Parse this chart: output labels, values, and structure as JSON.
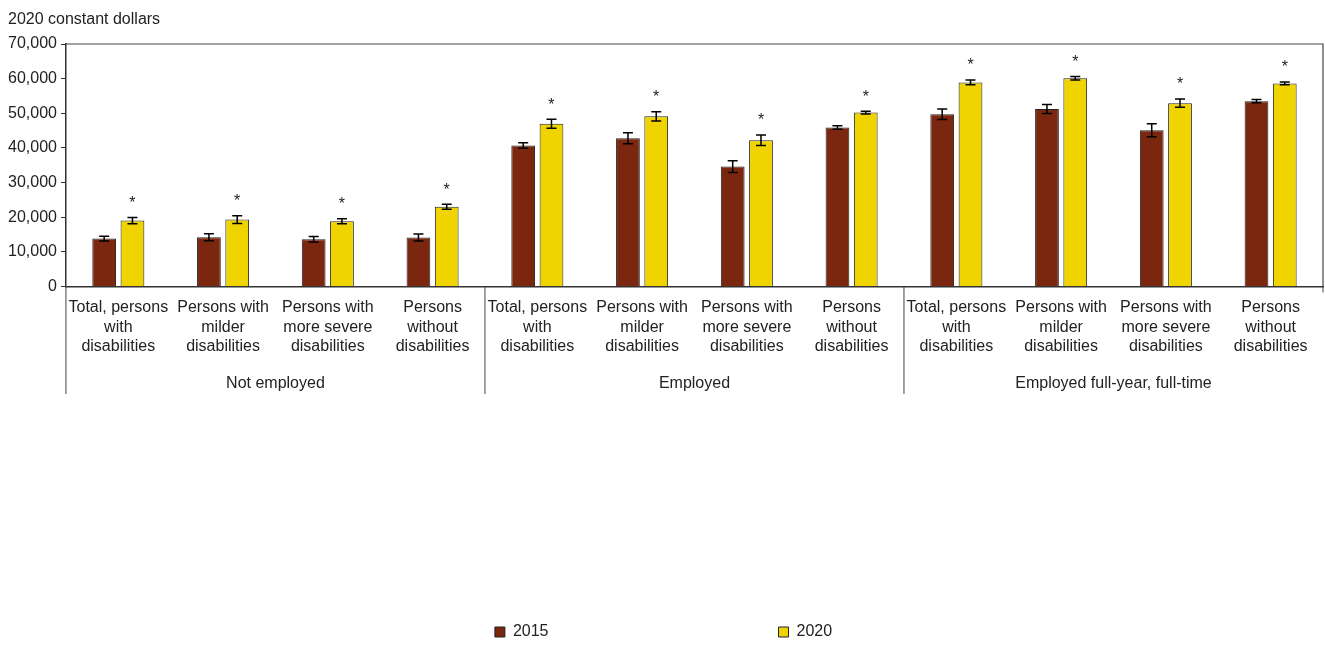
{
  "chart_data": {
    "type": "bar",
    "ylabel": "2020 constant dollars",
    "categories": [
      "Total, persons with disabilities",
      "Persons with milder disabilities",
      "Persons with more severe disabilities",
      "Persons without disabilities",
      "Total, persons with disabilities",
      "Persons with milder disabilities",
      "Persons with more severe disabilities",
      "Persons without disabilities",
      "Total, persons with disabilities",
      "Persons with milder disabilities",
      "Persons with more severe disabilities",
      "Persons without disabilities"
    ],
    "series": [
      {
        "name": "2015",
        "color": "#7b2710",
        "values": [
          13800,
          14200,
          13600,
          14100,
          40700,
          42800,
          34600,
          45900,
          49700,
          51200,
          45100,
          53500
        ],
        "errors": [
          700,
          1000,
          800,
          1000,
          800,
          1600,
          1700,
          500,
          1500,
          1300,
          1900,
          500
        ]
      },
      {
        "name": "2020",
        "color": "#f0d400",
        "values": [
          19000,
          19300,
          18800,
          23000,
          47000,
          49100,
          42200,
          50200,
          58900,
          60100,
          52900,
          58600
        ],
        "errors": [
          900,
          1100,
          700,
          700,
          1300,
          1300,
          1500,
          400,
          700,
          500,
          1200,
          400
        ],
        "value_labels": [
          "*",
          "*",
          "*",
          "*",
          "*",
          "*",
          "*",
          "*",
          "*",
          "*",
          "*",
          "*"
        ]
      }
    ],
    "annotations": [
      "Not employed",
      "Employed",
      "Employed full-year, full-time"
    ],
    "ylim": [
      0,
      70000
    ],
    "yticks": [
      {
        "value": 0,
        "label": "0"
      },
      {
        "value": 10000,
        "label": "10,000"
      },
      {
        "value": 20000,
        "label": "20,000"
      },
      {
        "value": 30000,
        "label": "30,000"
      },
      {
        "value": 40000,
        "label": "40,000"
      },
      {
        "value": 50000,
        "label": "50,000"
      },
      {
        "value": 60000,
        "label": "60,000"
      },
      {
        "value": 70000,
        "label": "70,000"
      }
    ],
    "grid": false,
    "legend": "bottom"
  }
}
